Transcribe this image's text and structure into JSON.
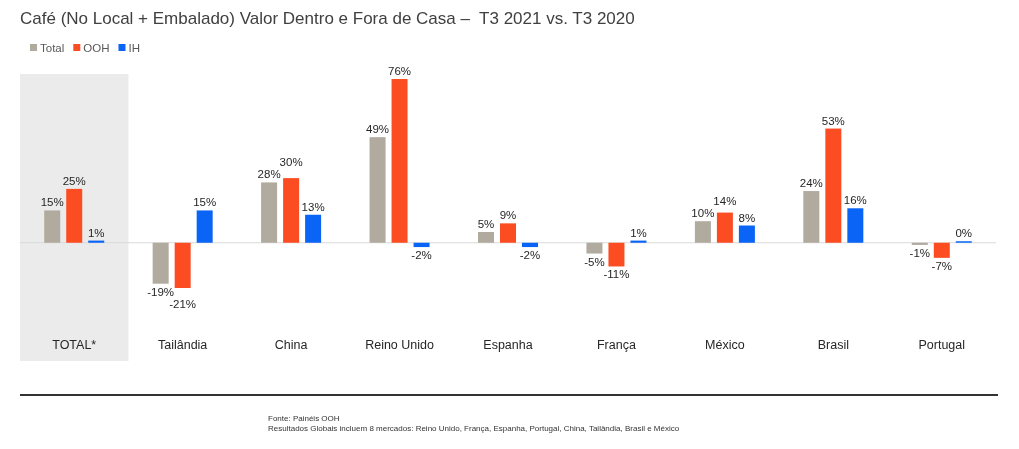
{
  "chart_data": {
    "type": "bar",
    "title": "Café (No Local + Embalado) Valor Dentro e Fora de Casa –  T3 2021 vs. T3 2020",
    "categories": [
      "TOTAL*",
      "Tailândia",
      "China",
      "Reino Unido",
      "Espanha",
      "França",
      "México",
      "Brasil",
      "Portugal"
    ],
    "series": [
      {
        "name": "Total",
        "color": "#b0ab9e",
        "values": [
          15,
          -19,
          28,
          49,
          5,
          -5,
          10,
          24,
          -1
        ],
        "value_labels": [
          "15%",
          "-19%",
          "28%",
          "49%",
          "5%",
          "-5%",
          "10%",
          "24%",
          "-1%"
        ]
      },
      {
        "name": "OOH",
        "color": "#fc4c22",
        "values": [
          25,
          -21,
          30,
          76,
          9,
          -11,
          14,
          53,
          -7
        ],
        "value_labels": [
          "25%",
          "-21%",
          "30%",
          "76%",
          "9%",
          "-11%",
          "14%",
          "53%",
          "-7%"
        ]
      },
      {
        "name": "IH",
        "color": "#0a64f5",
        "values": [
          1,
          15,
          13,
          -2,
          -2,
          1,
          8,
          16,
          0
        ],
        "value_labels": [
          "1%",
          "15%",
          "13%",
          "-2%",
          "-2%",
          "1%",
          "8%",
          "16%",
          "0%"
        ]
      }
    ],
    "tick_labels": "x",
    "legend": "top left",
    "bands": [
      {
        "axis": "x",
        "from": "TOTAL*",
        "to": "TOTAL*",
        "color": "#ebebeb"
      }
    ],
    "annotations": [
      "Fonte: Painéis OOH",
      "Resultados Globais incluem 8 mercados: Reino Unido, França, Espanha, Portugal, China, Tailândia, Brasil e México"
    ]
  }
}
